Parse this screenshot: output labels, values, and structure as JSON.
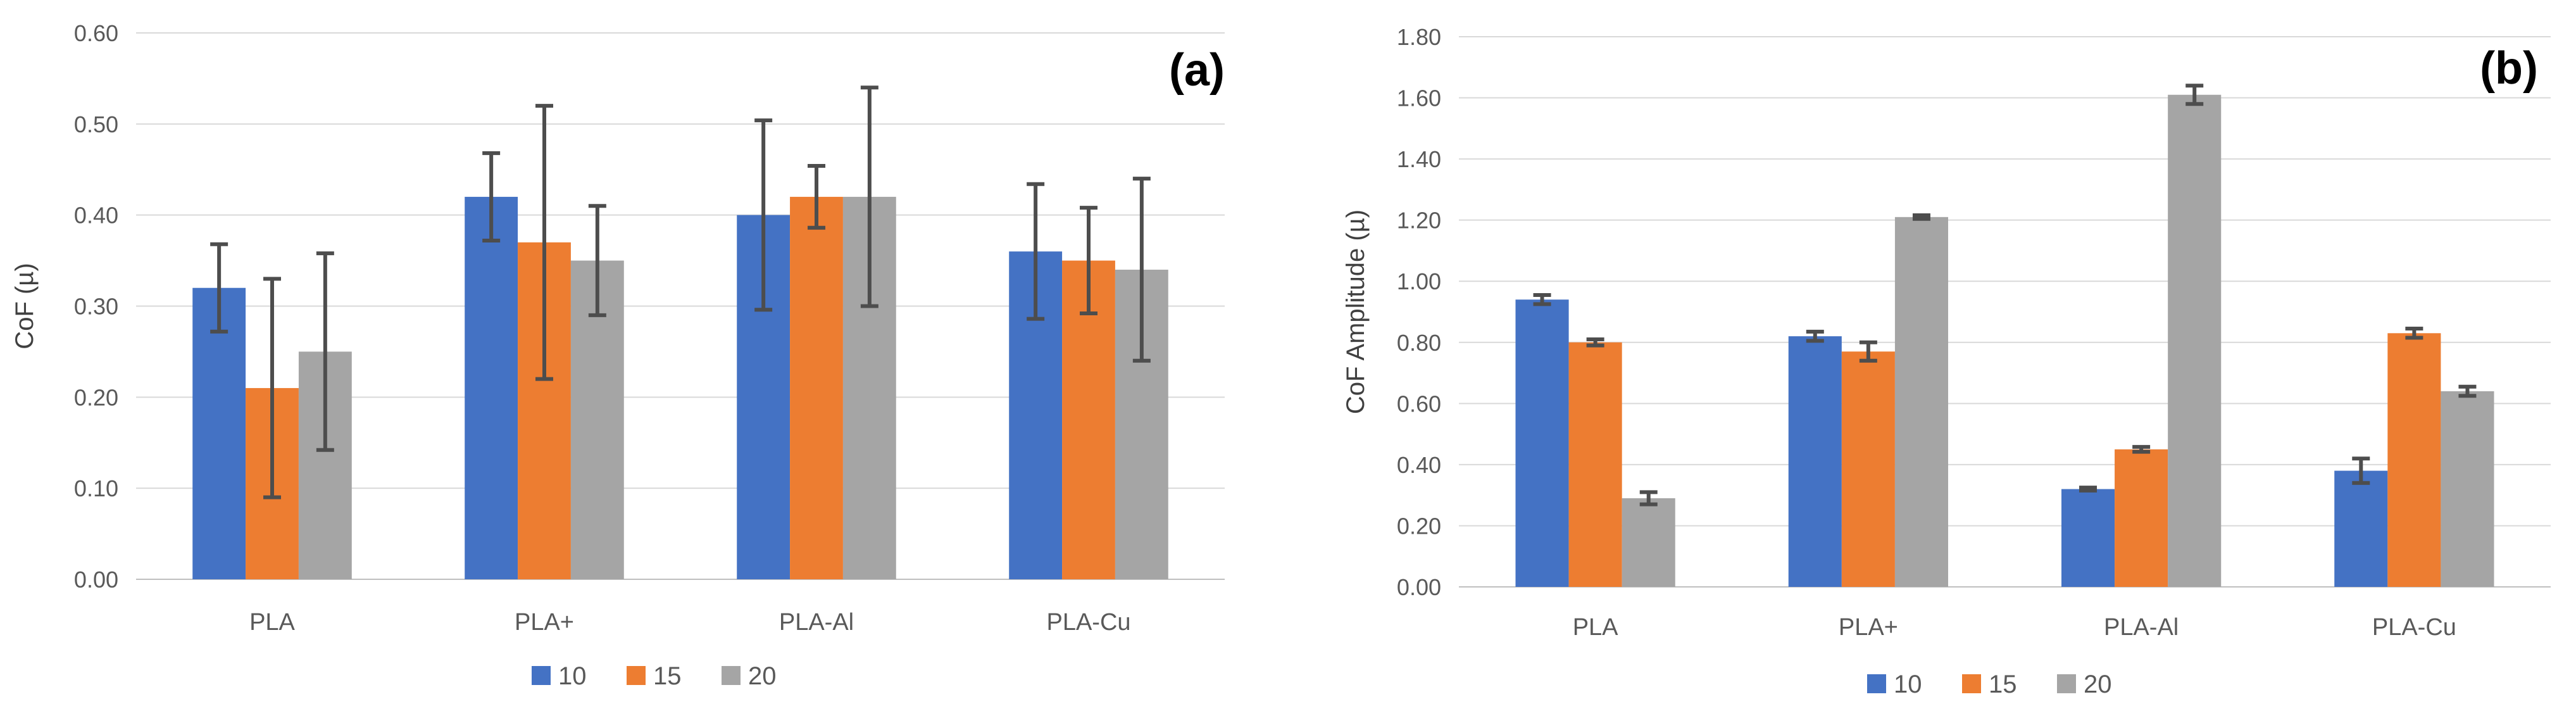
{
  "colors": {
    "s10": "#4472c4",
    "s15": "#ed7d31",
    "s20": "#a5a5a5"
  },
  "chart_data": [
    {
      "type": "bar",
      "panel_label": "(a)",
      "title": "",
      "xlabel": "",
      "ylabel": "CoF (µ)",
      "ylim": [
        0,
        0.6
      ],
      "yticks": [
        "0.00",
        "0.10",
        "0.20",
        "0.30",
        "0.40",
        "0.50",
        "0.60"
      ],
      "categories": [
        "PLA",
        "PLA+",
        "PLA-Al",
        "PLA-Cu"
      ],
      "legend_position": "bottom",
      "series": [
        {
          "name": "10",
          "values": [
            0.32,
            0.42,
            0.4,
            0.36
          ],
          "errors": [
            0.048,
            0.048,
            0.104,
            0.074
          ]
        },
        {
          "name": "15",
          "values": [
            0.21,
            0.37,
            0.42,
            0.35
          ],
          "errors": [
            0.12,
            0.15,
            0.034,
            0.058
          ]
        },
        {
          "name": "20",
          "values": [
            0.25,
            0.35,
            0.42,
            0.34
          ],
          "errors": [
            0.108,
            0.06,
            0.12,
            0.1
          ]
        }
      ]
    },
    {
      "type": "bar",
      "panel_label": "(b)",
      "title": "",
      "xlabel": "",
      "ylabel": "CoF Amplitude (µ)",
      "ylim": [
        0,
        1.8
      ],
      "yticks": [
        "0.00",
        "0.20",
        "0.40",
        "0.60",
        "0.80",
        "1.00",
        "1.20",
        "1.40",
        "1.60",
        "1.80"
      ],
      "categories": [
        "PLA",
        "PLA+",
        "PLA-Al",
        "PLA-Cu"
      ],
      "legend_position": "bottom",
      "series": [
        {
          "name": "10",
          "values": [
            0.94,
            0.82,
            0.32,
            0.38
          ],
          "errors": [
            0.015,
            0.015,
            0.005,
            0.04
          ]
        },
        {
          "name": "15",
          "values": [
            0.8,
            0.77,
            0.45,
            0.83
          ],
          "errors": [
            0.01,
            0.03,
            0.008,
            0.015
          ]
        },
        {
          "name": "20",
          "values": [
            0.29,
            1.21,
            1.61,
            0.64
          ],
          "errors": [
            0.02,
            0.006,
            0.03,
            0.015
          ]
        }
      ]
    }
  ]
}
